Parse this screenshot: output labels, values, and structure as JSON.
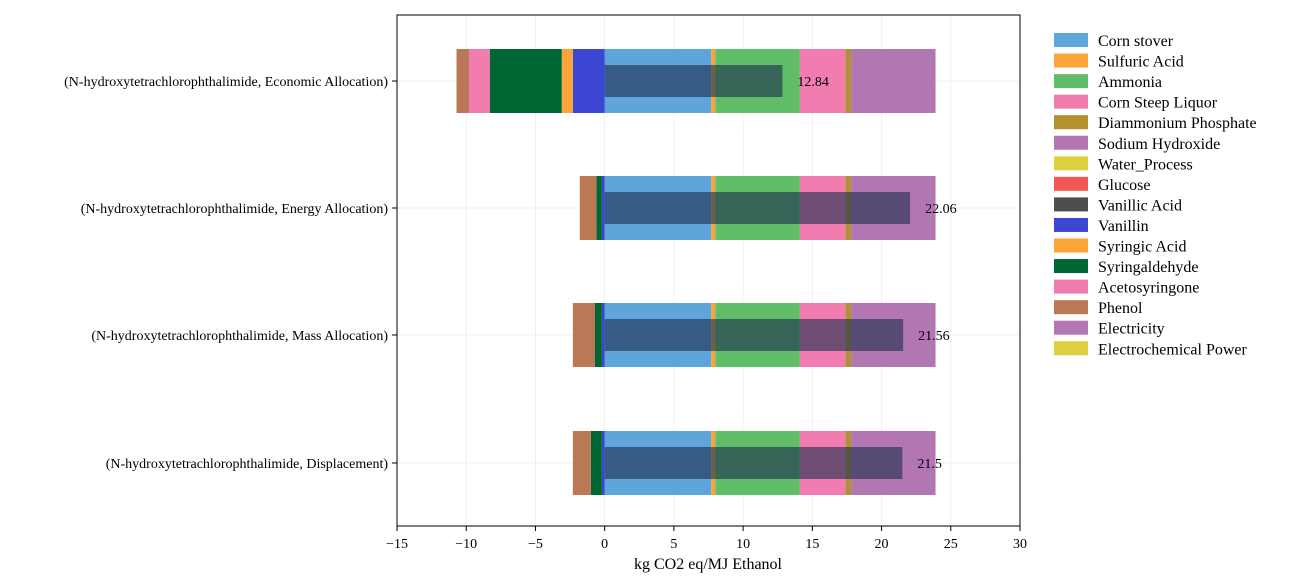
{
  "chart_data": {
    "type": "bar",
    "orientation": "horizontal",
    "stacked": true,
    "title": "",
    "xlabel": "kg CO2 eq/MJ Ethanol",
    "ylabel": "",
    "xlim": [
      -15,
      30
    ],
    "xticks": [
      -15,
      -10,
      -5,
      0,
      5,
      10,
      15,
      20,
      25,
      30
    ],
    "grid": true,
    "legend_position": "right",
    "categories": [
      "(N-hydroxytetrachlorophthalimide, Economic Allocation)",
      "(N-hydroxytetrachlorophthalimide, Energy Allocation)",
      "(N-hydroxytetrachlorophthalimide, Mass Allocation)",
      "(N-hydroxytetrachlorophthalimide, Displacement)"
    ],
    "series": [
      {
        "name": "Corn stover",
        "color": "#5DA5DA",
        "values": [
          7.7,
          7.7,
          7.7,
          7.7
        ]
      },
      {
        "name": "Sulfuric Acid",
        "color": "#FAA43A",
        "values": [
          0.3,
          0.3,
          0.3,
          0.3
        ]
      },
      {
        "name": "Ammonia",
        "color": "#60BD68",
        "values": [
          6.1,
          6.1,
          6.1,
          6.1
        ]
      },
      {
        "name": "Corn Steep Liquor",
        "color": "#F17CB0",
        "values": [
          3.3,
          3.3,
          3.3,
          3.3
        ]
      },
      {
        "name": "Diammonium Phosphate",
        "color": "#B2912F",
        "values": [
          0.4,
          0.4,
          0.4,
          0.4
        ]
      },
      {
        "name": "Sodium Hydroxide",
        "color": "#B276B2",
        "values": [
          6.1,
          6.1,
          6.1,
          6.1
        ]
      },
      {
        "name": "Water_Process",
        "color": "#DECF3F",
        "values": [
          0,
          0,
          0,
          0
        ]
      },
      {
        "name": "Glucose",
        "color": "#F15854",
        "values": [
          0,
          0,
          0,
          0
        ]
      },
      {
        "name": "Vanillic Acid",
        "color": "#4D4D4D",
        "values": [
          0,
          0,
          0,
          0
        ]
      },
      {
        "name": "Vanillin",
        "color": "#3C46D2",
        "values": [
          -2.3,
          -0.2,
          -0.2,
          -0.2
        ]
      },
      {
        "name": "Syringic Acid",
        "color": "#FAA43A",
        "values": [
          -0.8,
          0,
          0,
          0
        ]
      },
      {
        "name": "Syringaldehyde",
        "color": "#006633",
        "values": [
          -5.2,
          -0.4,
          -0.5,
          -0.8
        ]
      },
      {
        "name": "Acetosyringone",
        "color": "#F17CB0",
        "values": [
          -1.5,
          0,
          0,
          0
        ]
      },
      {
        "name": "Phenol",
        "color": "#BB7856",
        "values": [
          -0.9,
          -1.2,
          -1.6,
          -1.3
        ]
      },
      {
        "name": "Electricity",
        "color": "#B276B2",
        "values": [
          0,
          0,
          0,
          0
        ]
      },
      {
        "name": "Electrochemical Power",
        "color": "#DECF3F",
        "values": [
          0,
          0,
          0,
          0
        ]
      }
    ],
    "net": {
      "color": "#1F2F4F",
      "values": [
        12.84,
        22.06,
        21.56,
        21.5
      ],
      "labels": [
        "12.84",
        "22.06",
        "21.56",
        "21.5"
      ]
    }
  }
}
